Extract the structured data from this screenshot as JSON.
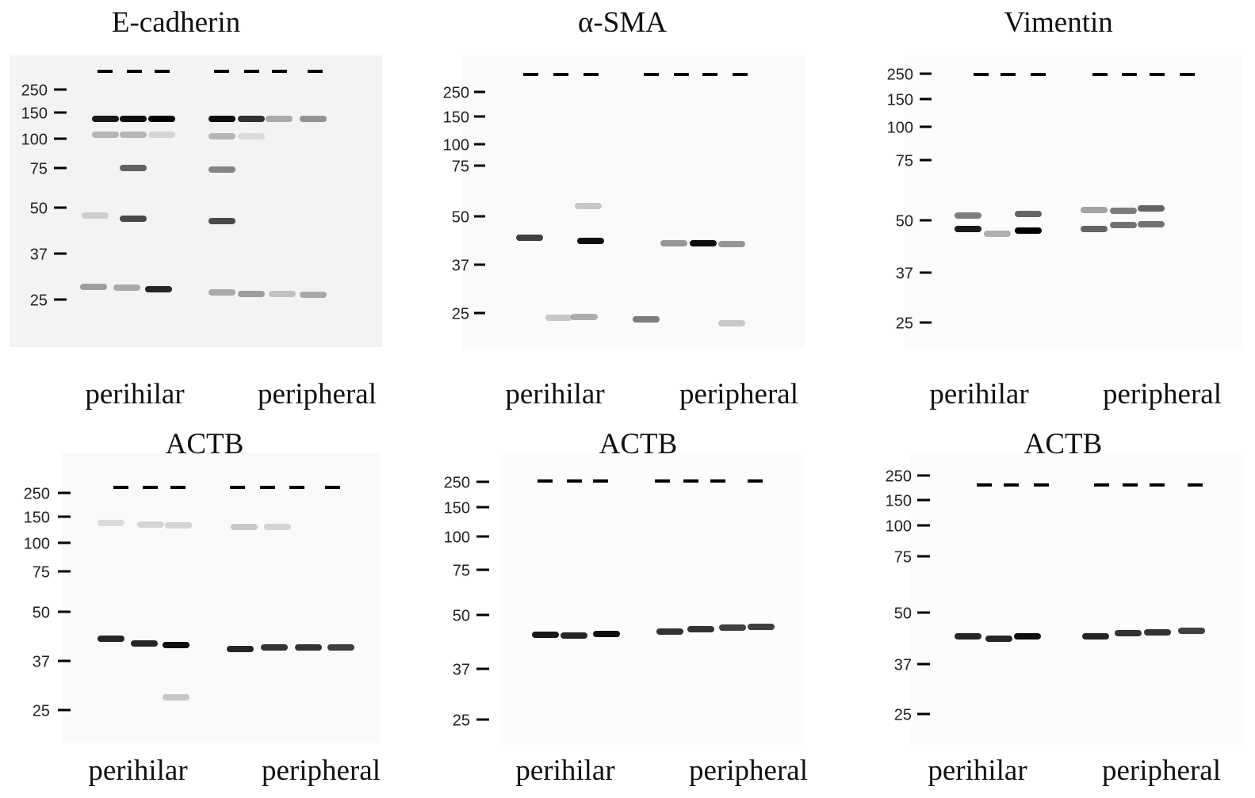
{
  "panels": [
    {
      "title": "E-cadherin",
      "markers": [
        "250",
        "150",
        "100",
        "75",
        "50",
        "37",
        "25"
      ],
      "groups": [
        "perihilar",
        "peripheral"
      ]
    },
    {
      "title": "α-SMA",
      "markers": [
        "250",
        "150",
        "100",
        "75",
        "50",
        "37",
        "25"
      ],
      "groups": [
        "perihilar",
        "peripheral"
      ]
    },
    {
      "title": "Vimentin",
      "markers": [
        "250",
        "150",
        "100",
        "75",
        "50",
        "37",
        "25"
      ],
      "groups": [
        "perihilar",
        "peripheral"
      ]
    },
    {
      "title": "ACTB",
      "markers": [
        "250",
        "150",
        "100",
        "75",
        "50",
        "37",
        "25"
      ],
      "groups": [
        "perihilar",
        "peripheral"
      ]
    },
    {
      "title": "ACTB",
      "markers": [
        "250",
        "150",
        "100",
        "75",
        "50",
        "37",
        "25"
      ],
      "groups": [
        "perihilar",
        "peripheral"
      ]
    },
    {
      "title": "ACTB",
      "markers": [
        "250",
        "150",
        "100",
        "75",
        "50",
        "37",
        "25"
      ],
      "groups": [
        "perihilar",
        "peripheral"
      ]
    }
  ]
}
